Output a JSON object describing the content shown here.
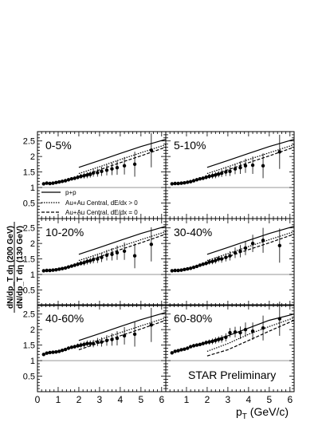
{
  "figure": {
    "ylabel_num": "dN/dp_T dη (200 GeV)",
    "ylabel_den": "dN/dp_T dη (130 GeV)",
    "xlabel": "p",
    "xlabel_sub": "T",
    "xlabel_unit": " (GeV/c)",
    "watermark": "STAR Preliminary",
    "legend": [
      {
        "label": "p+p",
        "style": "solid"
      },
      {
        "label": "Au+Au Central, dE/dx > 0",
        "style": "dotted"
      },
      {
        "label": "Au+Au Central, dE/dx = 0",
        "style": "dashed"
      }
    ]
  },
  "chart_data": {
    "type": "scatter",
    "xlabel": "p_T (GeV/c)",
    "ylabel": "dN/dp_T dη (200 GeV) / dN/dp_T dη (130 GeV)",
    "xlim": [
      0,
      6.2
    ],
    "ylim": [
      0,
      2.8
    ],
    "x_ticks": [
      "0",
      "1",
      "2",
      "3",
      "4",
      "5",
      "6"
    ],
    "y_ticks": [
      "0.5",
      "1",
      "1.5",
      "2",
      "2.5"
    ],
    "reference_line": 1,
    "curves_x": [
      2.0,
      3.0,
      4.0,
      5.0,
      6.2
    ],
    "panels": [
      {
        "label": "0-5%",
        "points": [
          [
            0.3,
            1.12
          ],
          [
            0.45,
            1.14
          ],
          [
            0.6,
            1.13
          ],
          [
            0.75,
            1.14
          ],
          [
            0.9,
            1.16
          ],
          [
            1.05,
            1.18
          ],
          [
            1.2,
            1.2
          ],
          [
            1.35,
            1.22
          ],
          [
            1.5,
            1.25
          ],
          [
            1.65,
            1.28
          ],
          [
            1.8,
            1.3
          ],
          [
            1.95,
            1.33
          ],
          [
            2.1,
            1.36
          ],
          [
            2.25,
            1.38
          ],
          [
            2.4,
            1.4
          ],
          [
            2.55,
            1.42
          ],
          [
            2.7,
            1.47
          ],
          [
            2.9,
            1.48
          ],
          [
            3.1,
            1.52
          ],
          [
            3.35,
            1.56
          ],
          [
            3.6,
            1.6
          ],
          [
            3.85,
            1.64
          ],
          [
            4.2,
            1.7
          ],
          [
            4.7,
            1.75
          ],
          [
            5.5,
            2.2
          ]
        ],
        "errors": [
          0.04,
          0.04,
          0.04,
          0.04,
          0.04,
          0.04,
          0.05,
          0.05,
          0.05,
          0.05,
          0.06,
          0.07,
          0.08,
          0.09,
          0.1,
          0.1,
          0.12,
          0.13,
          0.15,
          0.17,
          0.2,
          0.23,
          0.28,
          0.4,
          0.55
        ],
        "pp": [
          1.65,
          1.87,
          2.1,
          2.32,
          2.55
        ],
        "dedx_gt0": [
          1.45,
          1.67,
          1.9,
          2.12,
          2.38
        ],
        "dedx_eq0": [
          1.35,
          1.57,
          1.8,
          2.02,
          2.3
        ]
      },
      {
        "label": "5-10%",
        "points": [
          [
            0.3,
            1.12
          ],
          [
            0.45,
            1.13
          ],
          [
            0.6,
            1.13
          ],
          [
            0.75,
            1.14
          ],
          [
            0.9,
            1.15
          ],
          [
            1.05,
            1.17
          ],
          [
            1.2,
            1.19
          ],
          [
            1.35,
            1.22
          ],
          [
            1.5,
            1.25
          ],
          [
            1.65,
            1.28
          ],
          [
            1.8,
            1.3
          ],
          [
            1.95,
            1.33
          ],
          [
            2.1,
            1.36
          ],
          [
            2.25,
            1.38
          ],
          [
            2.4,
            1.4
          ],
          [
            2.55,
            1.43
          ],
          [
            2.7,
            1.46
          ],
          [
            2.9,
            1.5
          ],
          [
            3.1,
            1.52
          ],
          [
            3.35,
            1.6
          ],
          [
            3.6,
            1.64
          ],
          [
            3.85,
            1.7
          ],
          [
            4.2,
            1.72
          ],
          [
            4.7,
            1.7
          ],
          [
            5.5,
            2.15
          ]
        ],
        "errors": [
          0.04,
          0.04,
          0.04,
          0.04,
          0.04,
          0.04,
          0.05,
          0.05,
          0.05,
          0.05,
          0.06,
          0.07,
          0.08,
          0.09,
          0.1,
          0.1,
          0.12,
          0.13,
          0.15,
          0.17,
          0.2,
          0.23,
          0.28,
          0.4,
          0.55
        ],
        "pp": [
          1.65,
          1.87,
          2.1,
          2.32,
          2.55
        ],
        "dedx_gt0": [
          1.45,
          1.67,
          1.9,
          2.12,
          2.38
        ],
        "dedx_eq0": [
          1.35,
          1.57,
          1.8,
          2.02,
          2.3
        ]
      },
      {
        "label": "10-20%",
        "points": [
          [
            0.3,
            1.12
          ],
          [
            0.45,
            1.13
          ],
          [
            0.6,
            1.13
          ],
          [
            0.75,
            1.14
          ],
          [
            0.9,
            1.15
          ],
          [
            1.05,
            1.17
          ],
          [
            1.2,
            1.19
          ],
          [
            1.35,
            1.21
          ],
          [
            1.5,
            1.24
          ],
          [
            1.65,
            1.27
          ],
          [
            1.8,
            1.3
          ],
          [
            1.95,
            1.33
          ],
          [
            2.1,
            1.36
          ],
          [
            2.25,
            1.38
          ],
          [
            2.4,
            1.42
          ],
          [
            2.55,
            1.44
          ],
          [
            2.7,
            1.48
          ],
          [
            2.9,
            1.5
          ],
          [
            3.1,
            1.55
          ],
          [
            3.35,
            1.62
          ],
          [
            3.6,
            1.65
          ],
          [
            3.85,
            1.7
          ],
          [
            4.2,
            1.75
          ],
          [
            4.7,
            1.6
          ],
          [
            5.5,
            1.97
          ]
        ],
        "errors": [
          0.04,
          0.04,
          0.04,
          0.04,
          0.04,
          0.04,
          0.05,
          0.05,
          0.05,
          0.05,
          0.06,
          0.07,
          0.08,
          0.09,
          0.1,
          0.1,
          0.12,
          0.13,
          0.15,
          0.17,
          0.2,
          0.23,
          0.28,
          0.4,
          0.55
        ],
        "pp": [
          1.65,
          1.87,
          2.1,
          2.32,
          2.55
        ],
        "dedx_gt0": [
          1.45,
          1.67,
          1.9,
          2.12,
          2.38
        ],
        "dedx_eq0": [
          1.35,
          1.57,
          1.8,
          2.02,
          2.3
        ]
      },
      {
        "label": "30-40%",
        "points": [
          [
            0.3,
            1.12
          ],
          [
            0.45,
            1.13
          ],
          [
            0.6,
            1.13
          ],
          [
            0.75,
            1.14
          ],
          [
            0.9,
            1.16
          ],
          [
            1.05,
            1.18
          ],
          [
            1.2,
            1.2
          ],
          [
            1.35,
            1.23
          ],
          [
            1.5,
            1.26
          ],
          [
            1.65,
            1.3
          ],
          [
            1.8,
            1.33
          ],
          [
            1.95,
            1.36
          ],
          [
            2.1,
            1.4
          ],
          [
            2.25,
            1.42
          ],
          [
            2.4,
            1.45
          ],
          [
            2.55,
            1.5
          ],
          [
            2.7,
            1.5
          ],
          [
            2.9,
            1.55
          ],
          [
            3.1,
            1.6
          ],
          [
            3.35,
            1.7
          ],
          [
            3.6,
            1.75
          ],
          [
            3.85,
            1.85
          ],
          [
            4.2,
            2.0
          ],
          [
            4.7,
            2.1
          ],
          [
            5.5,
            1.93
          ]
        ],
        "errors": [
          0.04,
          0.04,
          0.04,
          0.04,
          0.04,
          0.04,
          0.05,
          0.05,
          0.05,
          0.05,
          0.06,
          0.07,
          0.08,
          0.09,
          0.1,
          0.1,
          0.12,
          0.13,
          0.15,
          0.17,
          0.2,
          0.23,
          0.28,
          0.4,
          0.55
        ],
        "pp": [
          1.65,
          1.87,
          2.1,
          2.32,
          2.55
        ],
        "dedx_gt0": [
          1.45,
          1.67,
          1.9,
          2.12,
          2.38
        ],
        "dedx_eq0": [
          1.35,
          1.57,
          1.8,
          2.02,
          2.3
        ]
      },
      {
        "label": "40-60%",
        "points": [
          [
            0.3,
            1.2
          ],
          [
            0.45,
            1.24
          ],
          [
            0.6,
            1.26
          ],
          [
            0.75,
            1.27
          ],
          [
            0.9,
            1.28
          ],
          [
            1.05,
            1.3
          ],
          [
            1.2,
            1.33
          ],
          [
            1.35,
            1.36
          ],
          [
            1.5,
            1.4
          ],
          [
            1.65,
            1.43
          ],
          [
            1.8,
            1.45
          ],
          [
            1.95,
            1.48
          ],
          [
            2.1,
            1.5
          ],
          [
            2.25,
            1.52
          ],
          [
            2.4,
            1.55
          ],
          [
            2.55,
            1.55
          ],
          [
            2.7,
            1.55
          ],
          [
            2.9,
            1.6
          ],
          [
            3.1,
            1.6
          ],
          [
            3.35,
            1.65
          ],
          [
            3.6,
            1.68
          ],
          [
            3.85,
            1.72
          ],
          [
            4.2,
            1.8
          ],
          [
            4.7,
            1.85
          ],
          [
            5.5,
            2.15
          ]
        ],
        "errors": [
          0.04,
          0.04,
          0.04,
          0.04,
          0.04,
          0.04,
          0.05,
          0.05,
          0.05,
          0.05,
          0.06,
          0.07,
          0.08,
          0.09,
          0.1,
          0.1,
          0.12,
          0.13,
          0.15,
          0.17,
          0.2,
          0.23,
          0.28,
          0.4,
          0.55
        ],
        "pp": [
          1.65,
          1.87,
          2.1,
          2.32,
          2.55
        ],
        "dedx_gt0": [
          1.45,
          1.67,
          1.9,
          2.12,
          2.38
        ],
        "dedx_eq0": [
          1.35,
          1.57,
          1.8,
          2.02,
          2.3
        ]
      },
      {
        "label": "60-80%",
        "points": [
          [
            0.3,
            1.25
          ],
          [
            0.45,
            1.3
          ],
          [
            0.6,
            1.32
          ],
          [
            0.75,
            1.35
          ],
          [
            0.9,
            1.37
          ],
          [
            1.05,
            1.4
          ],
          [
            1.2,
            1.45
          ],
          [
            1.35,
            1.48
          ],
          [
            1.5,
            1.5
          ],
          [
            1.65,
            1.52
          ],
          [
            1.8,
            1.55
          ],
          [
            1.95,
            1.58
          ],
          [
            2.1,
            1.6
          ],
          [
            2.25,
            1.62
          ],
          [
            2.4,
            1.65
          ],
          [
            2.55,
            1.68
          ],
          [
            2.7,
            1.7
          ],
          [
            2.9,
            1.75
          ],
          [
            3.1,
            1.9
          ],
          [
            3.35,
            1.92
          ],
          [
            3.6,
            1.9
          ],
          [
            3.85,
            2.0
          ],
          [
            4.2,
            1.95
          ],
          [
            4.7,
            2.05
          ],
          [
            5.5,
            2.35
          ]
        ],
        "errors": [
          0.04,
          0.04,
          0.04,
          0.04,
          0.04,
          0.04,
          0.05,
          0.05,
          0.05,
          0.05,
          0.06,
          0.07,
          0.08,
          0.09,
          0.1,
          0.1,
          0.12,
          0.13,
          0.15,
          0.17,
          0.2,
          0.23,
          0.28,
          0.4,
          0.55
        ],
        "pp": [
          1.6,
          1.8,
          2.05,
          2.3,
          2.5
        ],
        "dedx_gt0": [
          1.3,
          1.55,
          1.85,
          2.1,
          2.38
        ],
        "dedx_eq0": [
          1.15,
          1.35,
          1.65,
          1.95,
          2.3
        ]
      }
    ]
  }
}
